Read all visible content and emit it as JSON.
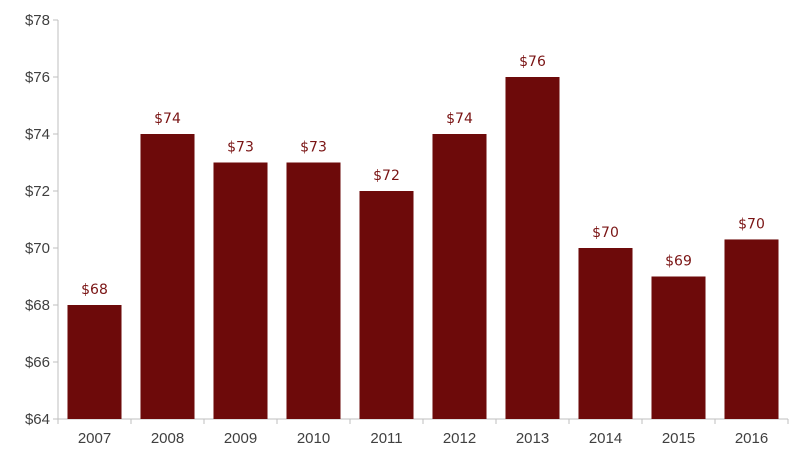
{
  "colors": {
    "bar": "#6d0a0a",
    "data_label": "#7a1414",
    "axis": "#bfbfbf",
    "tick_text": "#404040"
  },
  "chart_data": {
    "type": "bar",
    "title": "",
    "xlabel": "",
    "ylabel": "",
    "categories": [
      "2007",
      "2008",
      "2009",
      "2010",
      "2011",
      "2012",
      "2013",
      "2014",
      "2015",
      "2016"
    ],
    "values": [
      68,
      74,
      73,
      73,
      72,
      74,
      76,
      70,
      69,
      70.3
    ],
    "data_labels": [
      "$68",
      "$74",
      "$73",
      "$73",
      "$72",
      "$74",
      "$76",
      "$70",
      "$69",
      "$70"
    ],
    "ylim": [
      64,
      78
    ],
    "y_ticks": [
      64,
      66,
      68,
      70,
      72,
      74,
      76,
      78
    ],
    "y_tick_labels": [
      "$64",
      "$66",
      "$68",
      "$70",
      "$72",
      "$74",
      "$76",
      "$78"
    ],
    "grid": false,
    "legend": "none"
  }
}
